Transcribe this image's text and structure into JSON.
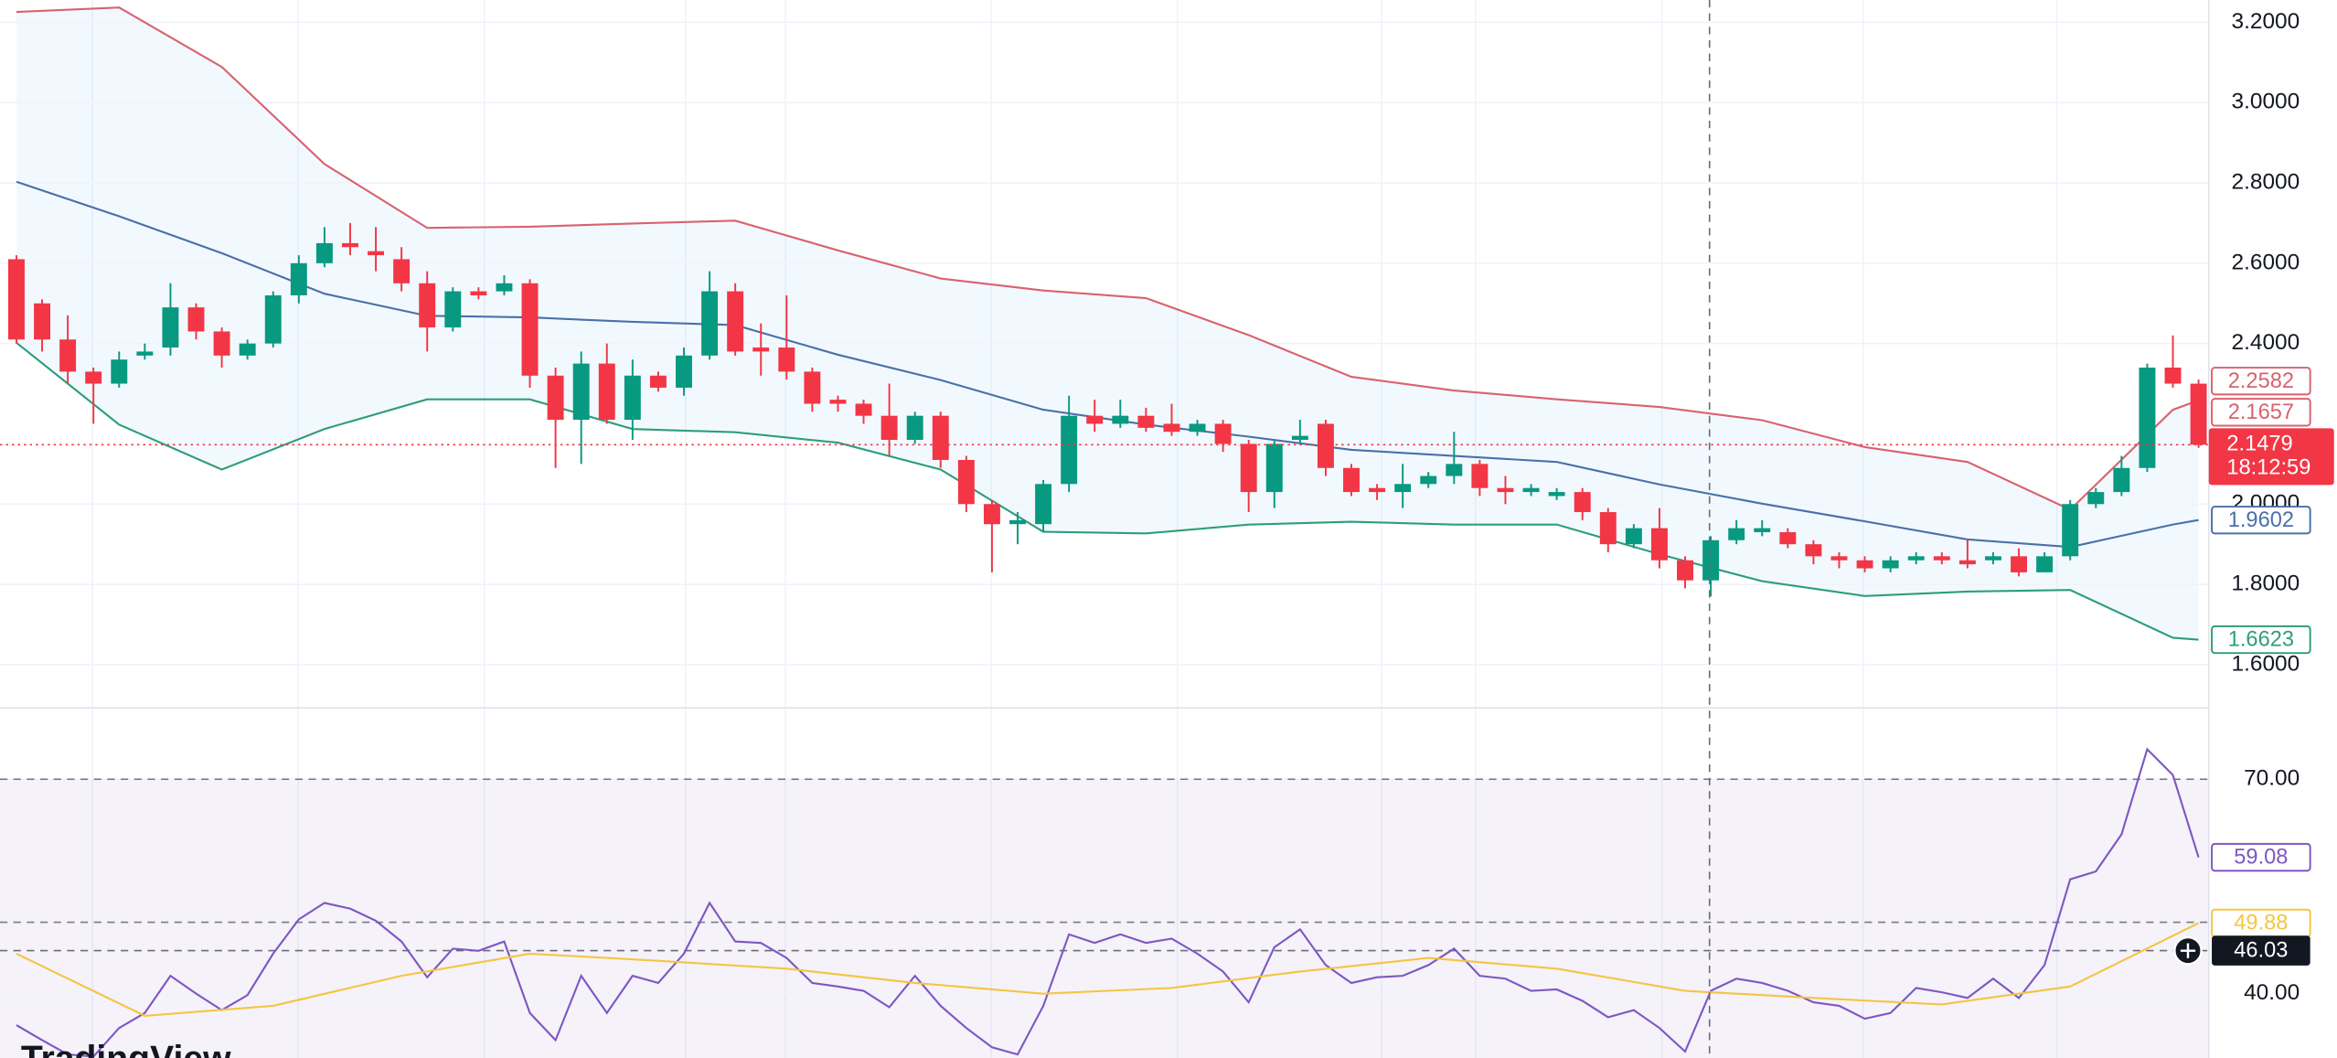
{
  "chart_data": [
    {
      "type": "candlestick",
      "xlim": [
        -0.64,
        85.4
      ],
      "ylim": [
        1.4925,
        3.2557
      ],
      "yticks": [
        {
          "value": 3.2,
          "label": "3.2000"
        },
        {
          "value": 3.0,
          "label": "3.0000"
        },
        {
          "value": 2.8,
          "label": "2.8000"
        },
        {
          "value": 2.6,
          "label": "2.6000"
        },
        {
          "value": 2.4,
          "label": "2.4000"
        },
        {
          "value": 2.0,
          "label": "2.0000"
        },
        {
          "value": 1.8,
          "label": "1.8000"
        },
        {
          "value": 1.6,
          "label": "1.6000"
        }
      ],
      "grid": true,
      "up_color": "#089981",
      "down_color": "#f23645",
      "open": [
        2.61,
        2.5,
        2.41,
        2.33,
        2.3,
        2.37,
        2.39,
        2.49,
        2.43,
        2.37,
        2.4,
        2.52,
        2.6,
        2.65,
        2.63,
        2.61,
        2.55,
        2.44,
        2.53,
        2.53,
        2.55,
        2.32,
        2.21,
        2.35,
        2.21,
        2.32,
        2.29,
        2.37,
        2.53,
        2.39,
        2.39,
        2.33,
        2.26,
        2.25,
        2.22,
        2.16,
        2.22,
        2.11,
        2.0,
        1.95,
        1.95,
        2.05,
        2.22,
        2.2,
        2.22,
        2.2,
        2.18,
        2.2,
        2.15,
        2.03,
        2.16,
        2.2,
        2.09,
        2.04,
        2.03,
        2.05,
        2.07,
        2.1,
        2.04,
        2.03,
        2.02,
        2.03,
        1.98,
        1.9,
        1.94,
        1.86,
        1.81,
        1.91,
        1.93,
        1.93,
        1.9,
        1.87,
        1.86,
        1.84,
        1.86,
        1.87,
        1.86,
        1.86,
        1.87,
        1.83,
        1.87,
        2.0,
        2.03,
        2.09,
        2.34,
        2.3
      ],
      "high": [
        2.62,
        2.51,
        2.47,
        2.34,
        2.38,
        2.4,
        2.55,
        2.5,
        2.44,
        2.41,
        2.53,
        2.62,
        2.69,
        2.7,
        2.69,
        2.64,
        2.58,
        2.54,
        2.54,
        2.57,
        2.56,
        2.34,
        2.38,
        2.4,
        2.36,
        2.33,
        2.39,
        2.58,
        2.55,
        2.45,
        2.52,
        2.34,
        2.27,
        2.26,
        2.3,
        2.23,
        2.23,
        2.12,
        2.01,
        1.98,
        2.06,
        2.27,
        2.26,
        2.26,
        2.24,
        2.25,
        2.21,
        2.21,
        2.16,
        2.16,
        2.21,
        2.21,
        2.1,
        2.05,
        2.1,
        2.08,
        2.18,
        2.11,
        2.07,
        2.05,
        2.04,
        2.04,
        1.99,
        1.95,
        1.99,
        1.87,
        1.92,
        1.96,
        1.96,
        1.94,
        1.91,
        1.88,
        1.87,
        1.87,
        1.88,
        1.88,
        1.91,
        1.88,
        1.89,
        1.88,
        2.01,
        2.04,
        2.12,
        2.35,
        2.42,
        2.31
      ],
      "low": [
        2.4,
        2.38,
        2.3,
        2.2,
        2.29,
        2.36,
        2.37,
        2.41,
        2.34,
        2.36,
        2.39,
        2.5,
        2.59,
        2.62,
        2.58,
        2.53,
        2.38,
        2.43,
        2.51,
        2.52,
        2.29,
        2.09,
        2.1,
        2.2,
        2.16,
        2.28,
        2.27,
        2.36,
        2.37,
        2.32,
        2.31,
        2.23,
        2.23,
        2.2,
        2.12,
        2.15,
        2.09,
        1.98,
        1.83,
        1.9,
        1.93,
        2.03,
        2.18,
        2.19,
        2.18,
        2.17,
        2.17,
        2.13,
        1.98,
        1.99,
        2.15,
        2.07,
        2.02,
        2.01,
        1.99,
        2.04,
        2.05,
        2.02,
        2.0,
        2.02,
        2.01,
        1.96,
        1.88,
        1.89,
        1.84,
        1.79,
        1.77,
        1.9,
        1.92,
        1.89,
        1.85,
        1.84,
        1.83,
        1.83,
        1.85,
        1.85,
        1.84,
        1.85,
        1.82,
        1.83,
        1.86,
        1.99,
        2.02,
        2.08,
        2.29,
        2.14
      ],
      "close": [
        2.41,
        2.41,
        2.33,
        2.3,
        2.36,
        2.38,
        2.49,
        2.43,
        2.37,
        2.4,
        2.52,
        2.6,
        2.65,
        2.64,
        2.62,
        2.55,
        2.44,
        2.53,
        2.52,
        2.55,
        2.32,
        2.21,
        2.35,
        2.21,
        2.32,
        2.29,
        2.37,
        2.53,
        2.38,
        2.38,
        2.33,
        2.25,
        2.25,
        2.22,
        2.16,
        2.22,
        2.11,
        2.0,
        1.95,
        1.96,
        2.05,
        2.22,
        2.2,
        2.22,
        2.19,
        2.18,
        2.2,
        2.15,
        2.03,
        2.15,
        2.17,
        2.09,
        2.03,
        2.03,
        2.05,
        2.07,
        2.1,
        2.04,
        2.03,
        2.04,
        2.03,
        1.98,
        1.9,
        1.94,
        1.86,
        1.81,
        1.91,
        1.94,
        1.94,
        1.9,
        1.87,
        1.86,
        1.84,
        1.86,
        1.87,
        1.86,
        1.85,
        1.87,
        1.83,
        1.87,
        2.0,
        2.03,
        2.09,
        2.34,
        2.3,
        2.1479
      ],
      "countdown": "18:12:59",
      "band_fill": "#2196f3",
      "series": [
        {
          "color": "#d9626f",
          "x": [
            0,
            4,
            8,
            12,
            16,
            20,
            24,
            28,
            32,
            36,
            40,
            44,
            48,
            52,
            56,
            60,
            64,
            68,
            72,
            76,
            80,
            84,
            85
          ],
          "values": [
            3.226,
            3.237,
            3.089,
            2.847,
            2.688,
            2.691,
            2.699,
            2.706,
            2.632,
            2.562,
            2.532,
            2.513,
            2.421,
            2.317,
            2.283,
            2.261,
            2.242,
            2.209,
            2.142,
            2.105,
            1.986,
            2.235,
            2.2582
          ]
        },
        {
          "color": "#4a70a8",
          "x": [
            0,
            4,
            8,
            12,
            16,
            20,
            24,
            28,
            32,
            36,
            40,
            44,
            48,
            52,
            56,
            60,
            64,
            68,
            72,
            76,
            80,
            84,
            85
          ],
          "values": [
            2.803,
            2.717,
            2.625,
            2.524,
            2.469,
            2.465,
            2.454,
            2.446,
            2.372,
            2.309,
            2.235,
            2.198,
            2.168,
            2.135,
            2.12,
            2.105,
            2.049,
            2.001,
            1.957,
            1.912,
            1.893,
            1.949,
            1.9602
          ]
        },
        {
          "color": "#2e9e7a",
          "x": [
            0,
            4,
            8,
            12,
            16,
            20,
            24,
            28,
            32,
            36,
            40,
            44,
            48,
            52,
            56,
            60,
            64,
            68,
            72,
            76,
            80,
            84,
            85
          ],
          "values": [
            2.402,
            2.198,
            2.086,
            2.187,
            2.261,
            2.261,
            2.187,
            2.179,
            2.153,
            2.086,
            1.931,
            1.927,
            1.949,
            1.956,
            1.949,
            1.949,
            1.875,
            1.808,
            1.771,
            1.782,
            1.786,
            1.667,
            1.6623
          ]
        }
      ],
      "price_lines": [
        {
          "value": 2.1657,
          "color": "#d9626f"
        }
      ],
      "logo": "TradingView"
    },
    {
      "type": "line",
      "xlim": [
        -0.64,
        85.4
      ],
      "ylim": [
        31,
        80
      ],
      "yticks": [
        {
          "value": 70,
          "label": "70.00"
        },
        {
          "value": 40,
          "label": "40.00"
        }
      ],
      "levels": [
        70,
        50
      ],
      "band": [
        70,
        30
      ],
      "band_color": "#7e57c2",
      "series": [
        {
          "color": "#7e57c2",
          "values": [
            35.6,
            33.5,
            31.5,
            31.2,
            35.2,
            37.3,
            42.5,
            40.0,
            37.7,
            39.8,
            45.6,
            50.4,
            52.7,
            51.9,
            50.2,
            47.3,
            42.3,
            46.3,
            46.0,
            47.3,
            37.3,
            33.5,
            42.5,
            37.3,
            42.5,
            41.5,
            45.6,
            52.7,
            47.3,
            47.1,
            45.0,
            41.5,
            41.0,
            40.4,
            38.1,
            42.5,
            38.3,
            35.2,
            32.5,
            31.5,
            38.3,
            48.3,
            47.1,
            48.3,
            47.1,
            47.7,
            45.6,
            43.1,
            38.8,
            46.5,
            49.0,
            44.0,
            41.5,
            42.3,
            42.5,
            44.0,
            46.3,
            42.5,
            42.1,
            40.4,
            40.6,
            39.0,
            36.7,
            37.7,
            35.2,
            31.9,
            40.4,
            42.1,
            41.5,
            40.4,
            38.8,
            38.3,
            36.5,
            37.3,
            40.8,
            40.2,
            39.4,
            42.1,
            39.4,
            44.0,
            56.0,
            57.1,
            62.3,
            74.2,
            70.6,
            59.08
          ]
        },
        {
          "color": "#f5c542",
          "x": [
            0,
            5,
            10,
            15,
            20,
            25,
            30,
            35,
            40,
            45,
            50,
            55,
            60,
            65,
            70,
            75,
            80,
            85
          ],
          "values": [
            45.6,
            36.9,
            38.3,
            42.5,
            45.6,
            44.6,
            43.5,
            41.5,
            40.0,
            40.8,
            43.1,
            45.0,
            43.5,
            40.4,
            39.4,
            38.5,
            41.0,
            49.88
          ]
        }
      ],
      "crosshair_value": 46.03
    }
  ]
}
